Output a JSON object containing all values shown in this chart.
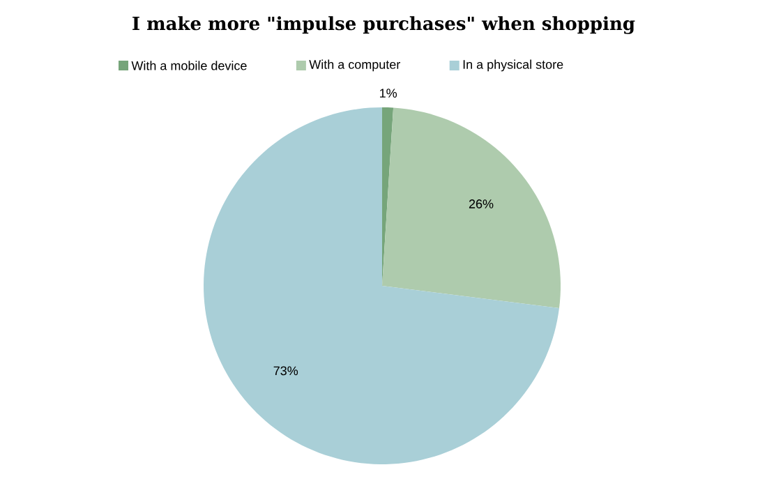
{
  "chart_data": {
    "type": "pie",
    "title": "I make more \"impulse purchases\" when shopping",
    "categories": [
      "With a mobile device",
      "With a computer",
      "In a physical store"
    ],
    "values": [
      1,
      26,
      73
    ],
    "colors": [
      "#76a57a",
      "#aecbad",
      "#a9cfd7"
    ],
    "value_labels": [
      "1%",
      "26%",
      "73%"
    ],
    "legend": "top"
  }
}
